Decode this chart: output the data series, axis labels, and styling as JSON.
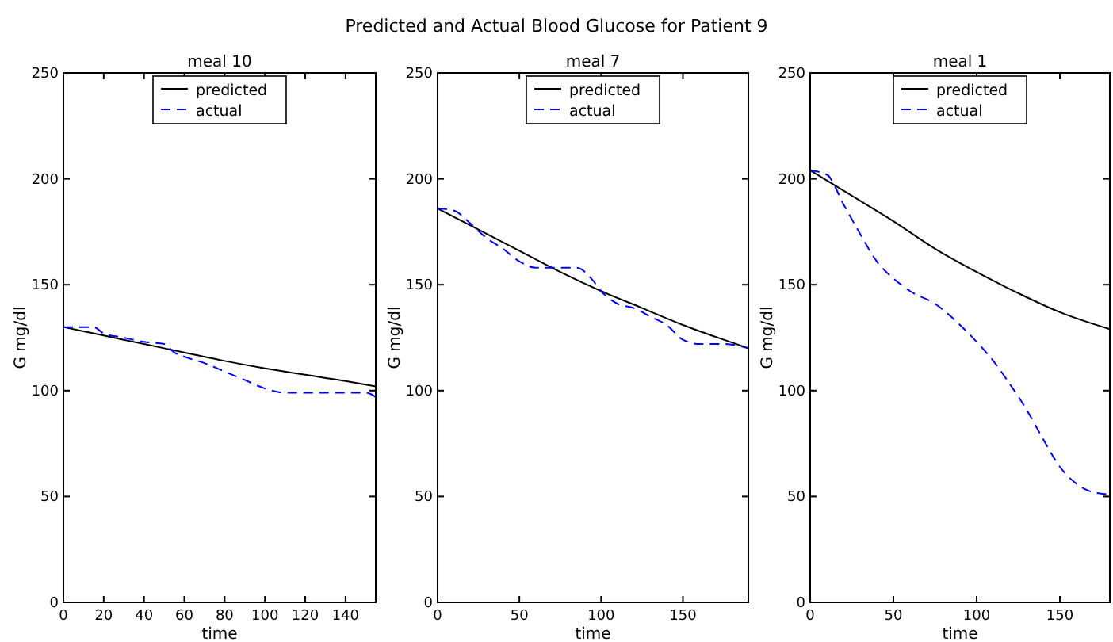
{
  "chart_data": [
    {
      "type": "line",
      "subtitle": "meal 10",
      "xlabel": "time",
      "ylabel": "G mg/dl",
      "xlim": [
        0,
        155
      ],
      "xticks": [
        0,
        20,
        40,
        60,
        80,
        100,
        120,
        140
      ],
      "ylim": [
        0,
        250
      ],
      "yticks": [
        0,
        50,
        100,
        150,
        200,
        250
      ],
      "legend": "top",
      "grid": false,
      "series": [
        {
          "name": "predicted",
          "color": "#000000",
          "line_style": "solid",
          "x": [
            0,
            20,
            40,
            60,
            80,
            100,
            120,
            140,
            155
          ],
          "values": [
            130,
            126,
            122,
            118,
            114,
            110.5,
            107.5,
            104.5,
            102
          ]
        },
        {
          "name": "actual",
          "color": "#0000ff",
          "line_style": "dashed",
          "x": [
            0,
            15,
            20,
            30,
            40,
            50,
            55,
            60,
            70,
            80,
            90,
            100,
            110,
            120,
            140,
            150,
            155
          ],
          "values": [
            130,
            130,
            127,
            125,
            123,
            122,
            118,
            116,
            113,
            109,
            105,
            101,
            99,
            99,
            99,
            99,
            97
          ]
        }
      ]
    },
    {
      "type": "line",
      "title": "Predicted and Actual Blood Glucose for Patient 9",
      "subtitle": "meal 7",
      "xlabel": "time",
      "ylabel": "G mg/dl",
      "xlim": [
        0,
        190
      ],
      "xticks": [
        0,
        50,
        100,
        150
      ],
      "ylim": [
        0,
        250
      ],
      "yticks": [
        0,
        50,
        100,
        150,
        200,
        250
      ],
      "legend": "top",
      "grid": false,
      "series": [
        {
          "name": "predicted",
          "color": "#000000",
          "line_style": "solid",
          "x": [
            0,
            25,
            50,
            75,
            100,
            125,
            150,
            175,
            190
          ],
          "values": [
            186,
            176,
            166,
            156,
            147,
            139,
            131,
            124,
            120
          ]
        },
        {
          "name": "actual",
          "color": "#0000ff",
          "line_style": "dashed",
          "x": [
            0,
            10,
            20,
            30,
            40,
            50,
            60,
            85,
            95,
            100,
            110,
            120,
            130,
            140,
            150,
            160,
            175,
            190
          ],
          "values": [
            186,
            185,
            179,
            172,
            167,
            161,
            158,
            158,
            152,
            147,
            141,
            139,
            135,
            131,
            124,
            122,
            122,
            120
          ]
        }
      ]
    },
    {
      "type": "line",
      "subtitle": "meal 1",
      "xlabel": "time",
      "ylabel": "G mg/dl",
      "xlim": [
        0,
        180
      ],
      "xticks": [
        0,
        50,
        100,
        150
      ],
      "ylim": [
        0,
        250
      ],
      "yticks": [
        0,
        50,
        100,
        150,
        200,
        250
      ],
      "legend": "top",
      "grid": false,
      "series": [
        {
          "name": "predicted",
          "color": "#000000",
          "line_style": "solid",
          "x": [
            0,
            25,
            50,
            75,
            100,
            125,
            150,
            180
          ],
          "values": [
            204,
            192,
            180,
            167,
            156,
            146,
            137,
            129
          ]
        },
        {
          "name": "actual",
          "color": "#0000ff",
          "line_style": "dashed",
          "x": [
            0,
            10,
            20,
            30,
            40,
            50,
            60,
            75,
            90,
            100,
            110,
            120,
            130,
            140,
            150,
            160,
            170,
            180
          ],
          "values": [
            204,
            202,
            188,
            174,
            161,
            153,
            147,
            141,
            131,
            123,
            114,
            103,
            91,
            77,
            64,
            56,
            52,
            51
          ]
        }
      ]
    }
  ]
}
